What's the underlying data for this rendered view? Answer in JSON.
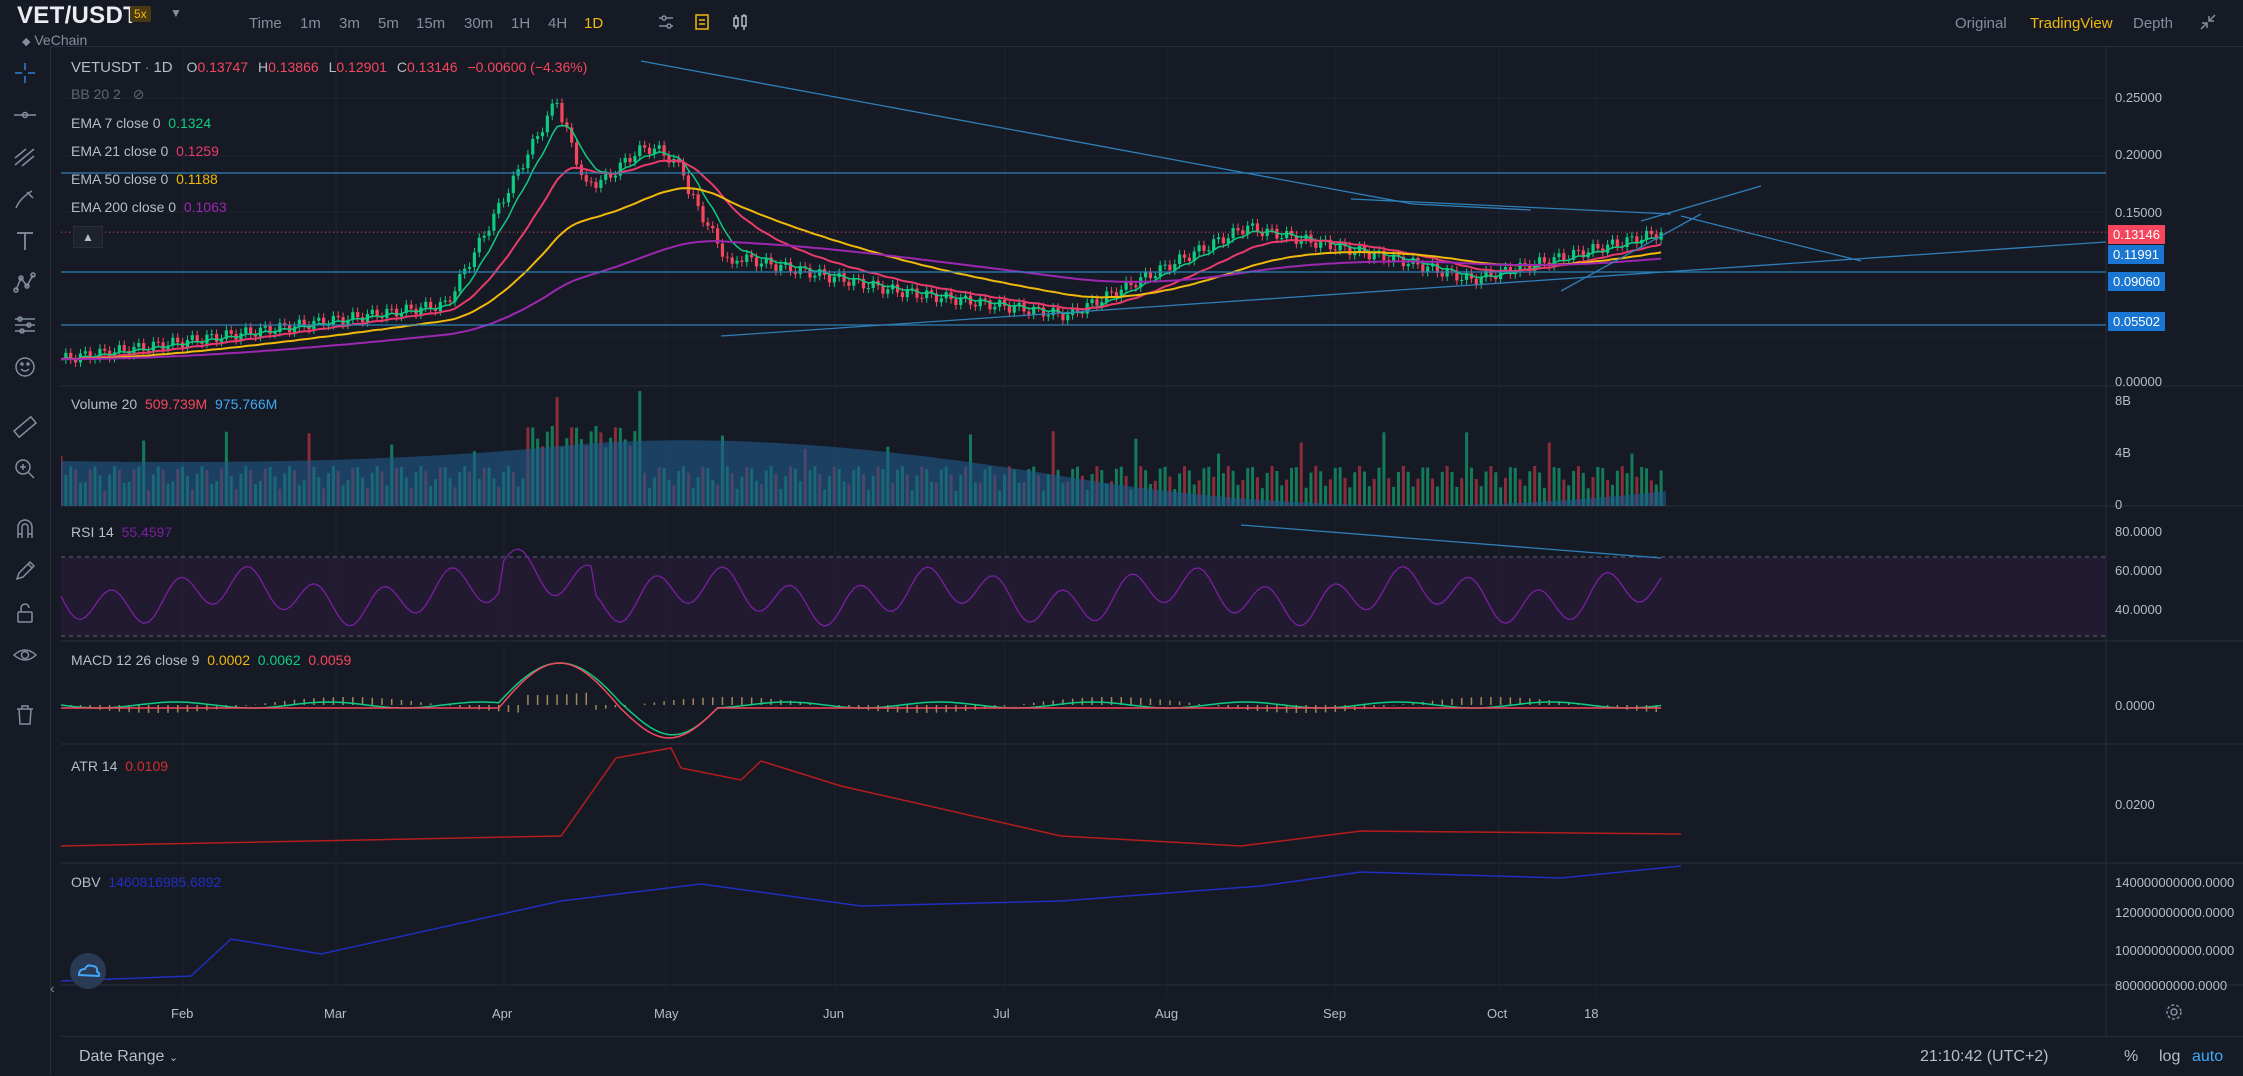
{
  "header": {
    "symbol": "VET/USDT",
    "leverage": "5x",
    "subname": "VeChain",
    "timeframes": [
      "Time",
      "1m",
      "3m",
      "5m",
      "15m",
      "30m",
      "1H",
      "4H",
      "1D"
    ],
    "active_timeframe": "1D",
    "views": [
      "Original",
      "TradingView",
      "Depth"
    ],
    "active_view": "TradingView"
  },
  "main_legend": {
    "pair": "VETUSDT",
    "interval": "1D",
    "o_label": "O",
    "o": "0.13747",
    "h_label": "H",
    "h": "0.13866",
    "l_label": "L",
    "l": "0.12901",
    "c_label": "C",
    "c": "0.13146",
    "change": "−0.00600 (−4.36%)",
    "bb": "BB 20 2",
    "ema7_label": "EMA 7 close 0",
    "ema7": "0.1324",
    "ema21_label": "EMA 21 close 0",
    "ema21": "0.1259",
    "ema50_label": "EMA 50 close 0",
    "ema50": "0.1188",
    "ema200_label": "EMA 200 close 0",
    "ema200": "0.1063"
  },
  "price_axis": [
    "0.25000",
    "0.20000",
    "0.15000",
    "0.00000"
  ],
  "price_tags": {
    "last": "0.13146",
    "level1": "0.11991",
    "level2": "0.09060",
    "level3": "0.05502"
  },
  "volume": {
    "label": "Volume 20",
    "v1": "509.739M",
    "v2": "975.766M",
    "axis": [
      "8B",
      "4B",
      "0"
    ]
  },
  "rsi": {
    "label": "RSI 14",
    "value": "55.4597",
    "axis": [
      "80.0000",
      "60.0000",
      "40.0000"
    ]
  },
  "macd": {
    "label": "MACD 12 26 close 9",
    "v1": "0.0002",
    "v2": "0.0062",
    "v3": "0.0059",
    "axis": [
      "0.0000"
    ]
  },
  "atr": {
    "label": "ATR 14",
    "value": "0.0109",
    "axis": [
      "0.0200"
    ]
  },
  "obv": {
    "label": "OBV",
    "value": "1460816985.6892",
    "axis": [
      "140000000000.0000",
      "120000000000.0000",
      "100000000000.0000",
      "80000000000.0000"
    ]
  },
  "time_axis": [
    "Feb",
    "Mar",
    "Apr",
    "May",
    "Jun",
    "Jul",
    "Aug",
    "Sep",
    "Oct",
    "18"
  ],
  "bottom": {
    "date_range": "Date Range",
    "clock": "21:10:42 (UTC+2)",
    "percent": "%",
    "log": "log",
    "auto": "auto"
  },
  "colors": {
    "bg": "#161a25",
    "up": "#0ecb81",
    "down": "#f6465d",
    "ema7": "#0ecb81",
    "ema21": "#e83b6c",
    "ema50": "#f0b90b",
    "ema200": "#9c27b0",
    "accent": "#f0b90b",
    "trend": "#2e7fb8",
    "rsi": "#7b1fa2",
    "obv": "#1f2fbf",
    "atr": "#b71c1c"
  }
}
